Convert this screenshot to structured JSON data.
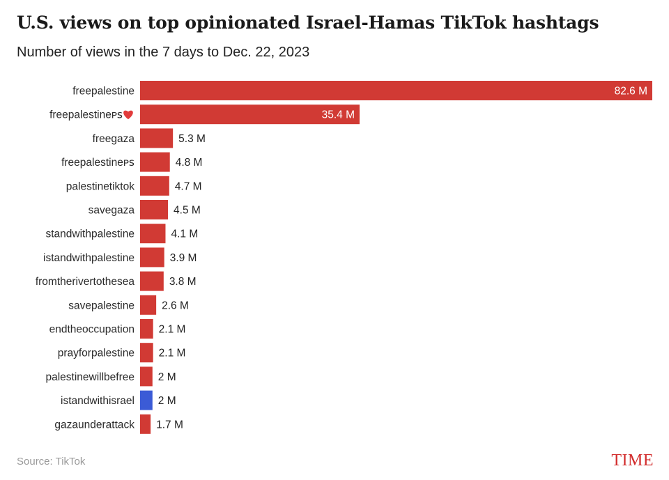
{
  "chart_data": {
    "type": "bar",
    "orientation": "horizontal",
    "title": "U.S. views on top opinionated Israel-Hamas TikTok hashtags",
    "subtitle": "Number of views in the 7 days to Dec. 22, 2023",
    "categories": [
      "freepalestine",
      "freepalestineᴘꜱ",
      "freegaza",
      "freepalestineᴘꜱ",
      "palestinetiktok",
      "savegaza",
      "standwithpalestine",
      "istandwithpalestine",
      "fromtherivertothesea",
      "savepalestine",
      "endtheoccupation",
      "prayforpalestine",
      "palestinewillbefree",
      "istandwithisrael",
      "gazaunderattack"
    ],
    "category_icons": [
      "",
      "heart-icon",
      "",
      "",
      "",
      "",
      "",
      "",
      "",
      "",
      "",
      "",
      "",
      "",
      ""
    ],
    "values": [
      82.6,
      35.4,
      5.3,
      4.8,
      4.7,
      4.5,
      4.1,
      3.9,
      3.8,
      2.6,
      2.1,
      2.1,
      2.0,
      2.0,
      1.7
    ],
    "value_labels": [
      "82.6 M",
      "35.4 M",
      "5.3 M",
      "4.8 M",
      "4.7 M",
      "4.5 M",
      "4.1 M",
      "3.9 M",
      "3.8 M",
      "2.6 M",
      "2.1 M",
      "2.1 M",
      "2 M",
      "2 M",
      "1.7 M"
    ],
    "bar_colors": [
      "#d13a34",
      "#d13a34",
      "#d13a34",
      "#d13a34",
      "#d13a34",
      "#d13a34",
      "#d13a34",
      "#d13a34",
      "#d13a34",
      "#d13a34",
      "#d13a34",
      "#d13a34",
      "#d13a34",
      "#3b5bd6",
      "#d13a34"
    ],
    "xlim": [
      0,
      82.6
    ],
    "grid": false,
    "legend": "none"
  },
  "footer": {
    "source": "Source: TikTok",
    "brand": "TIME"
  },
  "colors": {
    "heart": "#e23b3b",
    "inside_label": "#ffffff",
    "outside_label": "#222222"
  }
}
